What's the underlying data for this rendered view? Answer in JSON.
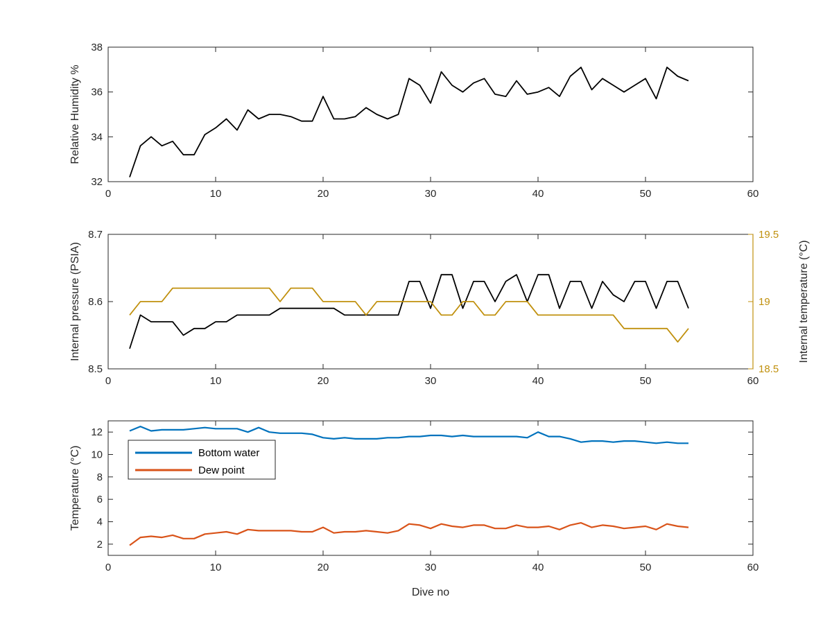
{
  "chart_data": [
    {
      "type": "line",
      "title": "",
      "xlabel": "",
      "ylabel": "Relative Humidity %",
      "xlim": [
        0,
        60
      ],
      "ylim": [
        32,
        38
      ],
      "xticks": [
        "0",
        "10",
        "20",
        "30",
        "40",
        "50",
        "60"
      ],
      "yticks": [
        "32",
        "34",
        "36",
        "38"
      ],
      "grid": false,
      "series": [
        {
          "name": "",
          "color": "#000000",
          "x": [
            2,
            3,
            4,
            5,
            6,
            7,
            8,
            9,
            10,
            11,
            12,
            13,
            14,
            15,
            16,
            17,
            18,
            19,
            20,
            21,
            22,
            23,
            24,
            25,
            26,
            27,
            28,
            29,
            30,
            31,
            32,
            33,
            34,
            35,
            36,
            37,
            38,
            39,
            40,
            41,
            42,
            43,
            44,
            45,
            46,
            47,
            48,
            49,
            50,
            51,
            52,
            53,
            54
          ],
          "values": [
            32.2,
            33.6,
            34.0,
            33.6,
            33.8,
            33.2,
            33.2,
            34.1,
            34.4,
            34.8,
            34.3,
            35.2,
            34.8,
            35.0,
            35.0,
            34.9,
            34.7,
            34.7,
            35.8,
            34.8,
            34.8,
            34.9,
            35.3,
            35.0,
            34.8,
            35.0,
            36.6,
            36.3,
            35.5,
            36.9,
            36.3,
            36.0,
            36.4,
            36.6,
            35.9,
            35.8,
            36.5,
            35.9,
            36.0,
            36.2,
            35.8,
            36.7,
            37.1,
            36.1,
            36.6,
            36.3,
            36.0,
            36.3,
            36.6,
            35.7,
            37.1,
            36.7,
            36.5
          ]
        }
      ]
    },
    {
      "type": "line",
      "title": "",
      "xlabel": "",
      "ylabel": "Internal pressure (PSIA)",
      "ylabel_right": "Internal temperature (°C)",
      "xlim": [
        0,
        60
      ],
      "ylim": [
        8.5,
        8.7
      ],
      "ylim_right": [
        18.5,
        19.5
      ],
      "xticks": [
        "0",
        "10",
        "20",
        "30",
        "40",
        "50",
        "60"
      ],
      "yticks": [
        "8.5",
        "8.6",
        "8.7"
      ],
      "yticks_right": [
        "18.5",
        "19",
        "19.5"
      ],
      "grid": false,
      "series": [
        {
          "name": "",
          "axis": "left",
          "color": "#000000",
          "x": [
            2,
            3,
            4,
            5,
            6,
            7,
            8,
            9,
            10,
            11,
            12,
            13,
            14,
            15,
            16,
            17,
            18,
            19,
            20,
            21,
            22,
            23,
            24,
            25,
            26,
            27,
            28,
            29,
            30,
            31,
            32,
            33,
            34,
            35,
            36,
            37,
            38,
            39,
            40,
            41,
            42,
            43,
            44,
            45,
            46,
            47,
            48,
            49,
            50,
            51,
            52,
            53,
            54
          ],
          "values": [
            8.53,
            8.58,
            8.57,
            8.57,
            8.57,
            8.55,
            8.56,
            8.56,
            8.57,
            8.57,
            8.58,
            8.58,
            8.58,
            8.58,
            8.59,
            8.59,
            8.59,
            8.59,
            8.59,
            8.59,
            8.58,
            8.58,
            8.58,
            8.58,
            8.58,
            8.58,
            8.63,
            8.63,
            8.59,
            8.64,
            8.64,
            8.59,
            8.63,
            8.63,
            8.6,
            8.63,
            8.64,
            8.6,
            8.64,
            8.64,
            8.59,
            8.63,
            8.63,
            8.59,
            8.63,
            8.61,
            8.6,
            8.63,
            8.63,
            8.59,
            8.63,
            8.63,
            8.59
          ]
        },
        {
          "name": "",
          "axis": "right",
          "color": "#c0900d",
          "x": [
            2,
            3,
            4,
            5,
            6,
            7,
            8,
            9,
            10,
            11,
            12,
            13,
            14,
            15,
            16,
            17,
            18,
            19,
            20,
            21,
            22,
            23,
            24,
            25,
            26,
            27,
            28,
            29,
            30,
            31,
            32,
            33,
            34,
            35,
            36,
            37,
            38,
            39,
            40,
            41,
            42,
            43,
            44,
            45,
            46,
            47,
            48,
            49,
            50,
            51,
            52,
            53,
            54
          ],
          "values": [
            18.9,
            19.0,
            19.0,
            19.0,
            19.1,
            19.1,
            19.1,
            19.1,
            19.1,
            19.1,
            19.1,
            19.1,
            19.1,
            19.1,
            19.0,
            19.1,
            19.1,
            19.1,
            19.0,
            19.0,
            19.0,
            19.0,
            18.9,
            19.0,
            19.0,
            19.0,
            19.0,
            19.0,
            19.0,
            18.9,
            18.9,
            19.0,
            19.0,
            18.9,
            18.9,
            19.0,
            19.0,
            19.0,
            18.9,
            18.9,
            18.9,
            18.9,
            18.9,
            18.9,
            18.9,
            18.9,
            18.8,
            18.8,
            18.8,
            18.8,
            18.8,
            18.7,
            18.8
          ]
        }
      ]
    },
    {
      "type": "line",
      "title": "",
      "xlabel": "Dive no",
      "ylabel": "Temperature (°C)",
      "xlim": [
        0,
        60
      ],
      "ylim": [
        1,
        13
      ],
      "xticks": [
        "0",
        "10",
        "20",
        "30",
        "40",
        "50",
        "60"
      ],
      "yticks": [
        "2",
        "4",
        "6",
        "8",
        "10",
        "12"
      ],
      "grid": false,
      "legend": "top-left",
      "series": [
        {
          "name": "Bottom water",
          "color": "#0072bd",
          "x": [
            2,
            3,
            4,
            5,
            6,
            7,
            8,
            9,
            10,
            11,
            12,
            13,
            14,
            15,
            16,
            17,
            18,
            19,
            20,
            21,
            22,
            23,
            24,
            25,
            26,
            27,
            28,
            29,
            30,
            31,
            32,
            33,
            34,
            35,
            36,
            37,
            38,
            39,
            40,
            41,
            42,
            43,
            44,
            45,
            46,
            47,
            48,
            49,
            50,
            51,
            52,
            53,
            54
          ],
          "values": [
            12.1,
            12.5,
            12.1,
            12.2,
            12.2,
            12.2,
            12.3,
            12.4,
            12.3,
            12.3,
            12.3,
            12.0,
            12.4,
            12.0,
            11.9,
            11.9,
            11.9,
            11.8,
            11.5,
            11.4,
            11.5,
            11.4,
            11.4,
            11.4,
            11.5,
            11.5,
            11.6,
            11.6,
            11.7,
            11.7,
            11.6,
            11.7,
            11.6,
            11.6,
            11.6,
            11.6,
            11.6,
            11.5,
            12.0,
            11.6,
            11.6,
            11.4,
            11.1,
            11.2,
            11.2,
            11.1,
            11.2,
            11.2,
            11.1,
            11.0,
            11.1,
            11.0,
            11.0
          ]
        },
        {
          "name": "Dew point",
          "color": "#d95319",
          "x": [
            2,
            3,
            4,
            5,
            6,
            7,
            8,
            9,
            10,
            11,
            12,
            13,
            14,
            15,
            16,
            17,
            18,
            19,
            20,
            21,
            22,
            23,
            24,
            25,
            26,
            27,
            28,
            29,
            30,
            31,
            32,
            33,
            34,
            35,
            36,
            37,
            38,
            39,
            40,
            41,
            42,
            43,
            44,
            45,
            46,
            47,
            48,
            49,
            50,
            51,
            52,
            53,
            54
          ],
          "values": [
            1.9,
            2.6,
            2.7,
            2.6,
            2.8,
            2.5,
            2.5,
            2.9,
            3.0,
            3.1,
            2.9,
            3.3,
            3.2,
            3.2,
            3.2,
            3.2,
            3.1,
            3.1,
            3.5,
            3.0,
            3.1,
            3.1,
            3.2,
            3.1,
            3.0,
            3.2,
            3.8,
            3.7,
            3.4,
            3.8,
            3.6,
            3.5,
            3.7,
            3.7,
            3.4,
            3.4,
            3.7,
            3.5,
            3.5,
            3.6,
            3.3,
            3.7,
            3.9,
            3.5,
            3.7,
            3.6,
            3.4,
            3.5,
            3.6,
            3.3,
            3.8,
            3.6,
            3.5
          ]
        }
      ]
    }
  ]
}
